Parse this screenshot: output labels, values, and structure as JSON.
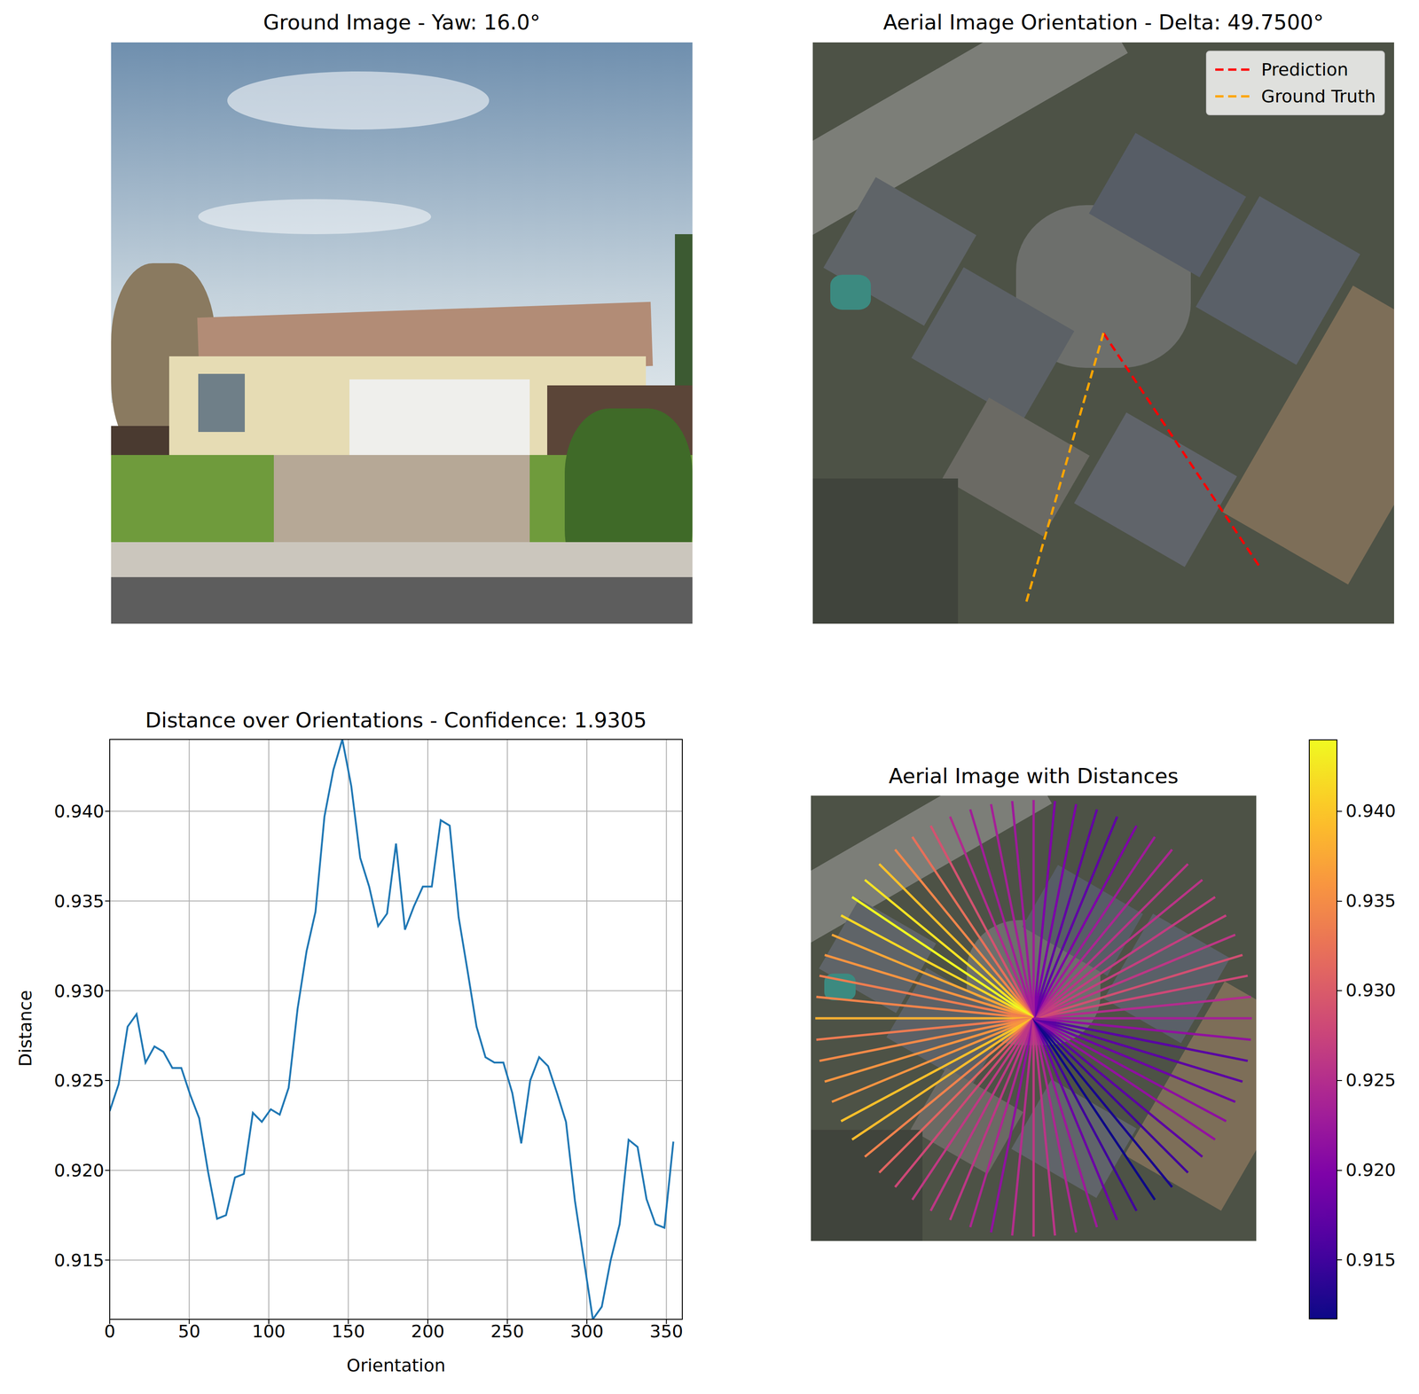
{
  "chart_data": [
    {
      "type": "image",
      "title": "Ground Image - Yaw: 16.0°"
    },
    {
      "type": "orientation",
      "title": "Aerial Image Orientation - Delta: 49.7500°",
      "legend": "upper right",
      "series": [
        {
          "name": "Prediction",
          "color": "#ff0000",
          "line_style": "dashed",
          "angle": 303.75
        },
        {
          "name": "Ground Truth",
          "color": "#ffa500",
          "line_style": "dashed",
          "angle": 254.0
        }
      ]
    },
    {
      "type": "line",
      "title": "Distance over Orientations - Confidence: 1.9305",
      "x_label": "Orientation",
      "y_label": "Distance",
      "x": [
        0,
        5.625,
        11.25,
        16.875,
        22.5,
        28.125,
        33.75,
        39.375,
        45,
        50.625,
        56.25,
        61.875,
        67.5,
        73.125,
        78.75,
        84.375,
        90,
        95.625,
        101.25,
        106.875,
        112.5,
        118.125,
        123.75,
        129.375,
        135,
        140.625,
        146.25,
        151.875,
        157.5,
        163.125,
        168.75,
        174.375,
        180,
        185.625,
        191.25,
        196.875,
        202.5,
        208.125,
        213.75,
        219.375,
        225,
        230.625,
        236.25,
        241.875,
        247.5,
        253.125,
        258.75,
        264.375,
        270,
        275.625,
        281.25,
        286.875,
        292.5,
        298.125,
        303.75,
        309.375,
        315,
        320.625,
        326.25,
        331.875,
        337.5,
        343.125,
        348.75,
        354.375
      ],
      "values": [
        0.9233,
        0.9248,
        0.928,
        0.9287,
        0.926,
        0.9269,
        0.9266,
        0.9257,
        0.9257,
        0.9242,
        0.9229,
        0.9199,
        0.9173,
        0.9175,
        0.9196,
        0.9198,
        0.9232,
        0.9227,
        0.9234,
        0.9231,
        0.9246,
        0.929,
        0.9322,
        0.9344,
        0.9397,
        0.9423,
        0.944,
        0.9414,
        0.9374,
        0.9358,
        0.9336,
        0.9343,
        0.9382,
        0.9334,
        0.9347,
        0.9358,
        0.9358,
        0.9395,
        0.9392,
        0.9341,
        0.9311,
        0.928,
        0.9263,
        0.926,
        0.926,
        0.9243,
        0.9215,
        0.925,
        0.9263,
        0.9258,
        0.9243,
        0.9227,
        0.9183,
        0.915,
        0.9117,
        0.9124,
        0.915,
        0.917,
        0.9217,
        0.9213,
        0.9184,
        0.917,
        0.9168,
        0.9216
      ],
      "color": "#1f77b4",
      "xlim": [
        0,
        360
      ],
      "xticks": [
        0,
        50,
        100,
        150,
        200,
        250,
        300,
        350
      ],
      "ylim": [
        0.9117,
        0.944
      ],
      "yticks": [
        0.915,
        {
          "value": 0.92,
          "label": "0.920"
        },
        0.925,
        {
          "value": 0.93,
          "label": "0.930"
        },
        0.935,
        {
          "value": 0.94,
          "label": "0.940"
        }
      ],
      "grid": true
    },
    {
      "type": "radial",
      "title": "Aerial Image with Distances",
      "x": [
        0,
        5.625,
        11.25,
        16.875,
        22.5,
        28.125,
        33.75,
        39.375,
        45,
        50.625,
        56.25,
        61.875,
        67.5,
        73.125,
        78.75,
        84.375,
        90,
        95.625,
        101.25,
        106.875,
        112.5,
        118.125,
        123.75,
        129.375,
        135,
        140.625,
        146.25,
        151.875,
        157.5,
        163.125,
        168.75,
        174.375,
        180,
        185.625,
        191.25,
        196.875,
        202.5,
        208.125,
        213.75,
        219.375,
        225,
        230.625,
        236.25,
        241.875,
        247.5,
        253.125,
        258.75,
        264.375,
        270,
        275.625,
        281.25,
        286.875,
        292.5,
        298.125,
        303.75,
        309.375,
        315,
        320.625,
        326.25,
        331.875,
        337.5,
        343.125,
        348.75,
        354.375
      ],
      "values": [
        0.9233,
        0.9248,
        0.928,
        0.9287,
        0.926,
        0.9269,
        0.9266,
        0.9257,
        0.9257,
        0.9242,
        0.9229,
        0.9199,
        0.9173,
        0.9175,
        0.9196,
        0.9198,
        0.9232,
        0.9227,
        0.9234,
        0.9231,
        0.9246,
        0.929,
        0.9322,
        0.9344,
        0.9397,
        0.9423,
        0.944,
        0.9414,
        0.9374,
        0.9358,
        0.9336,
        0.9343,
        0.9382,
        0.9334,
        0.9347,
        0.9358,
        0.9358,
        0.9395,
        0.9392,
        0.9341,
        0.9311,
        0.928,
        0.9263,
        0.926,
        0.926,
        0.9243,
        0.9215,
        0.925,
        0.9263,
        0.9258,
        0.9243,
        0.9227,
        0.9183,
        0.915,
        0.9117,
        0.9124,
        0.915,
        0.917,
        0.9217,
        0.9213,
        0.9184,
        0.917,
        0.9168,
        0.9216
      ],
      "color": "plasma",
      "colorbar": {
        "range": [
          0.9117,
          0.944
        ],
        "ticks": [
          0.915,
          {
            "value": 0.92,
            "label": "0.920"
          },
          0.925,
          {
            "value": 0.93,
            "label": "0.930"
          },
          0.935,
          {
            "value": 0.94,
            "label": "0.940"
          }
        ]
      }
    }
  ]
}
